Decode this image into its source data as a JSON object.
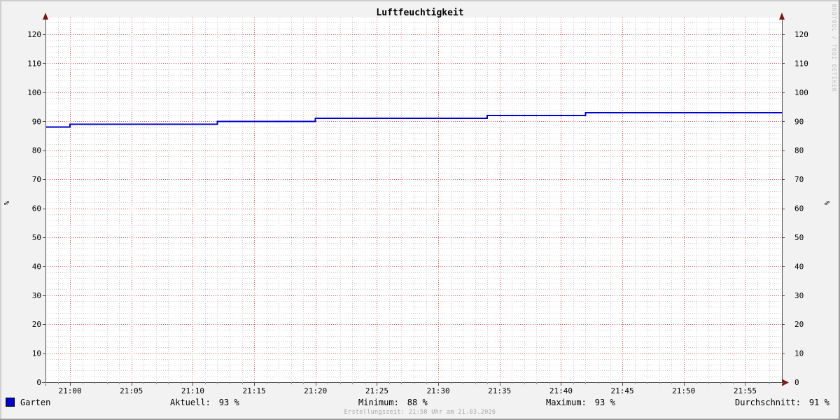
{
  "title": "Luftfeuchtigkeit",
  "watermark": "RRDTOOL / TOBI OETIKER",
  "footer": "Erstellungszeit: 21:58 Uhr am 21.03.2026",
  "legend": {
    "series_label": "Garten",
    "stats": {
      "aktuell": {
        "label": "Aktuell:",
        "value": "93 %"
      },
      "minimum": {
        "label": "Minimum:",
        "value": "88 %"
      },
      "maximum": {
        "label": "Maximum:",
        "value": "93 %"
      },
      "durchschnitt": {
        "label": "Durchschnitt:",
        "value": "91 %"
      }
    }
  },
  "chart_data": {
    "type": "line",
    "title": "Luftfeuchtigkeit",
    "ylabel": "%",
    "ylabel_right": "%",
    "ylim": [
      0,
      125
    ],
    "y_ticks": [
      0,
      10,
      20,
      30,
      40,
      50,
      60,
      70,
      80,
      90,
      100,
      110,
      120
    ],
    "y_minor_step": 2,
    "x_range": [
      "20:58",
      "21:58"
    ],
    "x_ticks": [
      "21:00",
      "21:05",
      "21:10",
      "21:15",
      "21:20",
      "21:25",
      "21:30",
      "21:35",
      "21:40",
      "21:45",
      "21:50",
      "21:55"
    ],
    "x_minor_step_min": 1,
    "grid": true,
    "legend_position": "bottom",
    "series": [
      {
        "name": "Garten",
        "color": "#0000cc",
        "style": "step",
        "points": [
          [
            "20:58",
            88
          ],
          [
            "21:00",
            89
          ],
          [
            "21:12",
            90
          ],
          [
            "21:20",
            91
          ],
          [
            "21:34",
            92
          ],
          [
            "21:42",
            93
          ],
          [
            "21:58",
            93
          ]
        ],
        "stats": {
          "aktuell": 93,
          "minimum": 88,
          "maximum": 93,
          "durchschnitt": 91
        }
      }
    ],
    "colors": {
      "background": "#f2f2f2",
      "canvas": "#ffffff",
      "major_grid": "#e05555",
      "minor_grid": "#cbcbcb",
      "axis": "#4d4d4d",
      "tick_minor": "#999999",
      "arrow": "#7c1616",
      "font": "#000000",
      "watermark": "#b9b9b9",
      "shade_top_left": "#cfcfcf",
      "shade_bottom_right": "#9e9e9e"
    }
  }
}
